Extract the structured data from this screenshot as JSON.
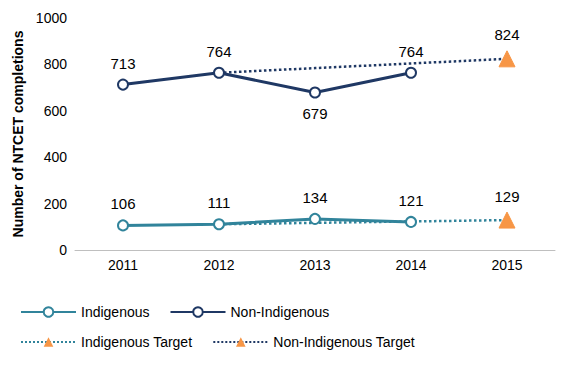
{
  "chart_data": {
    "type": "line",
    "categories": [
      "2011",
      "2012",
      "2013",
      "2014",
      "2015"
    ],
    "ylabel": "Number of NTCET completions",
    "ylim": [
      0,
      1000
    ],
    "yticks": [
      0,
      200,
      400,
      600,
      800,
      1000
    ],
    "grid": false,
    "legend": "bottom",
    "data_labels": true,
    "series": [
      {
        "name": "Indigenous",
        "color": "#31849B",
        "marker": "circle",
        "line_style": "solid",
        "values": [
          106,
          111,
          134,
          121,
          null
        ]
      },
      {
        "name": "Non-Indigenous",
        "color": "#1F3864",
        "marker": "circle",
        "line_style": "solid",
        "values": [
          713,
          764,
          679,
          764,
          null
        ]
      },
      {
        "name": "Indigenous Target",
        "color": "#31849B",
        "marker": "triangle",
        "line_style": "dotted",
        "values": [
          null,
          111,
          117,
          123,
          129
        ],
        "value_labels": [
          null,
          null,
          null,
          null,
          "129"
        ]
      },
      {
        "name": "Non-Indigenous Target",
        "color": "#1F3864",
        "marker": "triangle",
        "line_style": "dotted",
        "values": [
          null,
          764,
          784,
          804,
          824
        ],
        "value_labels": [
          null,
          null,
          null,
          null,
          "824"
        ]
      }
    ]
  }
}
